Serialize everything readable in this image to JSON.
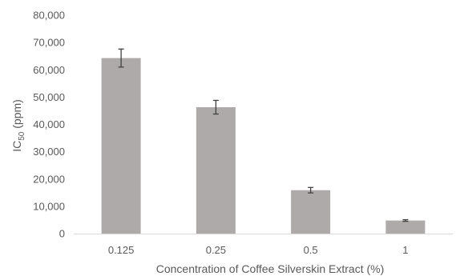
{
  "chart_data": {
    "type": "bar",
    "title": "",
    "xlabel": "Concentration of Coffee Silverskin Extract (%)",
    "ylabel": {
      "main": "IC",
      "subscript": "50",
      "suffix": " (ppm)"
    },
    "categories": [
      "0.125",
      "0.25",
      "0.5",
      "1"
    ],
    "values": [
      64300,
      46300,
      15900,
      4800
    ],
    "errors": [
      3300,
      2500,
      1000,
      300
    ],
    "ylim": [
      0,
      80000
    ],
    "ytick_step": 10000,
    "ytick_labels": [
      "0",
      "10,000",
      "20,000",
      "30,000",
      "40,000",
      "50,000",
      "60,000",
      "70,000",
      "80,000"
    ],
    "grid": false,
    "legend": "none",
    "colors": {
      "bar": "#aeaaaa",
      "axis": "#d9d9d9",
      "error_bar": "#404040",
      "text": "#595959"
    }
  }
}
